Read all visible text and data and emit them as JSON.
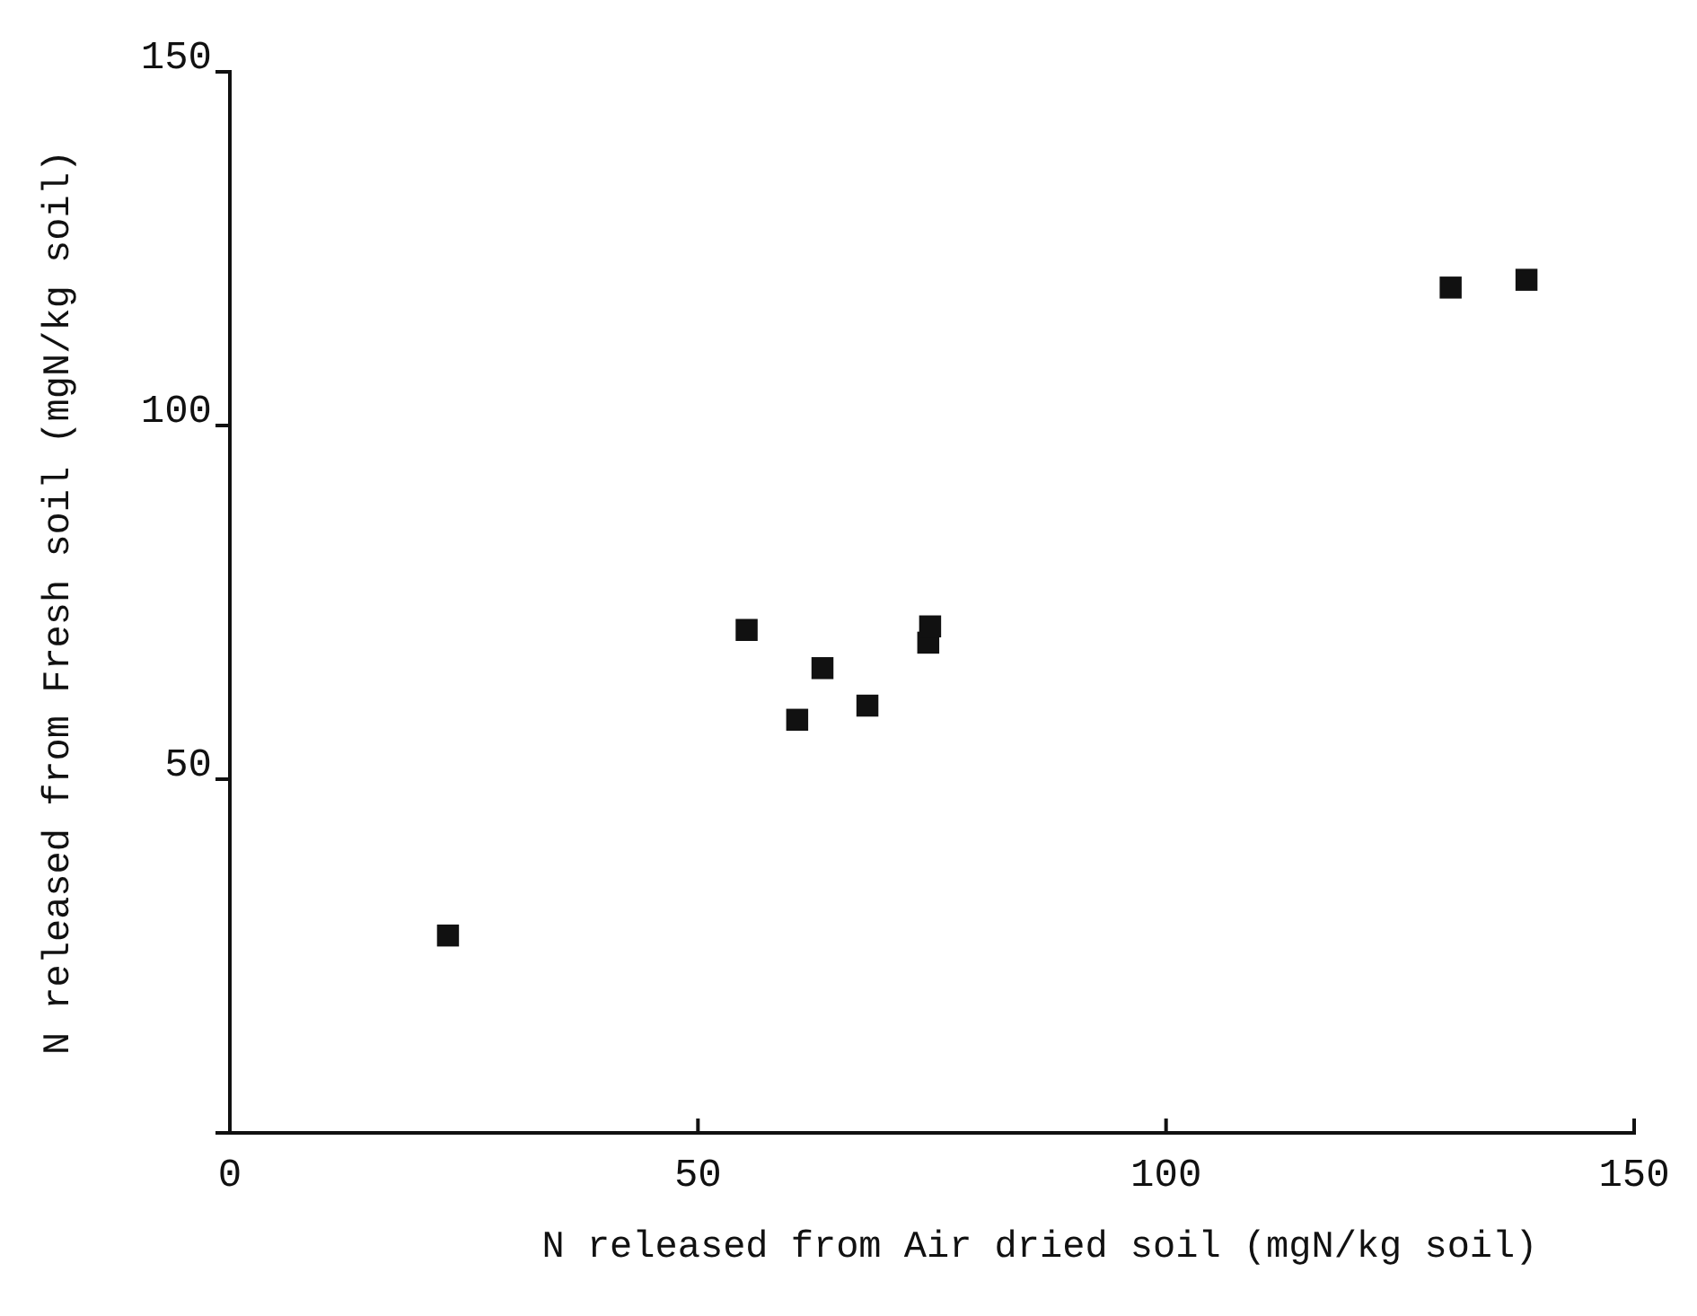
{
  "chart_data": {
    "type": "scatter",
    "xlabel": "N released from Air dried soil (mgN/kg soil)",
    "ylabel": "N released from Fresh soil (mgN/kg soil)",
    "x": [
      23.3,
      55.2,
      60.6,
      63.3,
      68.1,
      74.6,
      74.8,
      130.4,
      138.5
    ],
    "series": [
      {
        "color": "#111111",
        "values": [
          27.9,
          71.1,
          58.4,
          65.7,
          60.4,
          69.3,
          71.6,
          119.5,
          120.6
        ]
      }
    ],
    "xlim": [
      0,
      150
    ],
    "ylim": [
      0,
      150
    ],
    "xticks": [
      0,
      50,
      100,
      150
    ],
    "yticks": [
      50,
      100,
      150
    ],
    "marker": "square",
    "grid": false
  }
}
